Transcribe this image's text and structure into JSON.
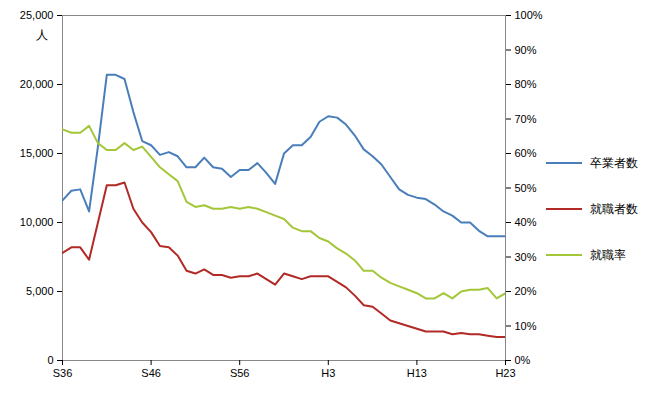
{
  "chart_data": {
    "type": "line",
    "y_label": "人",
    "legend": "right",
    "categories": [
      "S36",
      null,
      null,
      null,
      null,
      null,
      null,
      null,
      null,
      null,
      "S46",
      null,
      null,
      null,
      null,
      null,
      null,
      null,
      null,
      null,
      "S56",
      null,
      null,
      null,
      null,
      null,
      null,
      null,
      null,
      null,
      "H3",
      null,
      null,
      null,
      null,
      null,
      null,
      null,
      null,
      null,
      "H13",
      null,
      null,
      null,
      null,
      null,
      null,
      null,
      null,
      null,
      "H23"
    ],
    "ylim": [
      0,
      25000
    ],
    "yticks": [
      0,
      {
        "value": 5000,
        "label": "5,000"
      },
      {
        "value": 10000,
        "label": "10,000"
      },
      {
        "value": 15000,
        "label": "15,000"
      },
      {
        "value": 20000,
        "label": "20,000"
      },
      {
        "value": 25000,
        "label": "25,000"
      }
    ],
    "y2lim": [
      0,
      100
    ],
    "y2ticks": [
      {
        "value": 0,
        "label": "0%"
      },
      {
        "value": 10,
        "label": "10%"
      },
      {
        "value": 20,
        "label": "20%"
      },
      {
        "value": 30,
        "label": "30%"
      },
      {
        "value": 40,
        "label": "40%"
      },
      {
        "value": 50,
        "label": "50%"
      },
      {
        "value": 60,
        "label": "60%"
      },
      {
        "value": 70,
        "label": "70%"
      },
      {
        "value": 80,
        "label": "80%"
      },
      {
        "value": 90,
        "label": "90%"
      },
      {
        "value": 100,
        "label": "100%"
      }
    ],
    "series": [
      {
        "name": "卒業者数",
        "color": "#4a7ebb",
        "values": [
          11600,
          12300,
          12400,
          10800,
          15500,
          20700,
          20700,
          20400,
          18000,
          15900,
          15600,
          14900,
          15100,
          14800,
          14000,
          14000,
          14700,
          14000,
          13900,
          13300,
          13800,
          13800,
          14300,
          13600,
          12800,
          15000,
          15600,
          15600,
          16200,
          17300,
          17700,
          17600,
          17100,
          16300,
          15300,
          14800,
          14200,
          13300,
          12400,
          12000,
          11800,
          11700,
          11300,
          10800,
          10500,
          10000,
          10000,
          9400,
          9000,
          9000,
          9000
        ]
      },
      {
        "name": "就職者数",
        "color": "#b22a26",
        "values": [
          7800,
          8200,
          8200,
          7300,
          10000,
          12700,
          12700,
          12900,
          11000,
          10000,
          9300,
          8300,
          8200,
          7600,
          6500,
          6300,
          6600,
          6200,
          6200,
          6000,
          6100,
          6100,
          6300,
          5900,
          5500,
          6300,
          6100,
          5900,
          6100,
          6100,
          6100,
          5700,
          5300,
          4700,
          4000,
          3900,
          3400,
          2900,
          2700,
          2500,
          2300,
          2100,
          2100,
          2100,
          1900,
          2000,
          1900,
          1900,
          1800,
          1700,
          1700
        ]
      },
      {
        "name": "就職率",
        "color": "#a4c639",
        "axis": "y2",
        "values": [
          67,
          66,
          66,
          68,
          63,
          61,
          61,
          63,
          61,
          62,
          59,
          56,
          54,
          52,
          46,
          44.5,
          45,
          44,
          44,
          44.5,
          44,
          44.5,
          44,
          43,
          42,
          41,
          38.5,
          37.5,
          37.5,
          35.5,
          34.5,
          32.5,
          31,
          29,
          26,
          26,
          24,
          22.5,
          21.5,
          20.5,
          19.5,
          18,
          18,
          19.5,
          18,
          20,
          20.5,
          20.5,
          21,
          18,
          19.5
        ]
      }
    ]
  }
}
